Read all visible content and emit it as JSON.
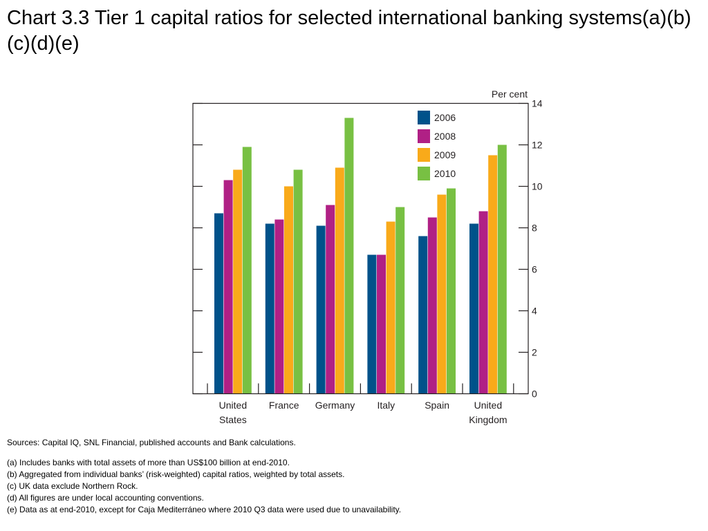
{
  "title": "Chart 3.3  Tier 1 capital ratios for selected international banking systems(a)(b)(c)(d)(e)",
  "chart_data": {
    "type": "bar",
    "categories": [
      [
        "United",
        "States"
      ],
      [
        "France"
      ],
      [
        "Germany"
      ],
      [
        "Italy"
      ],
      [
        "Spain"
      ],
      [
        "United",
        "Kingdom"
      ]
    ],
    "series": [
      {
        "name": "2006",
        "color": "#00528a",
        "values": [
          8.7,
          8.2,
          8.1,
          6.7,
          7.6,
          8.2
        ]
      },
      {
        "name": "2008",
        "color": "#b02085",
        "values": [
          10.3,
          8.4,
          9.1,
          6.7,
          8.5,
          8.8
        ]
      },
      {
        "name": "2009",
        "color": "#f9aa1a",
        "values": [
          10.8,
          10.0,
          10.9,
          8.3,
          9.6,
          11.5
        ]
      },
      {
        "name": "2010",
        "color": "#78c043",
        "values": [
          11.9,
          10.8,
          13.3,
          9.0,
          9.9,
          12.0
        ]
      }
    ],
    "ylabel": "Per cent",
    "ylim": [
      0,
      14
    ],
    "yticks": [
      0,
      2,
      4,
      6,
      8,
      10,
      12,
      14
    ],
    "y_axis_side": "right",
    "legend_position": "top-right",
    "grid": false
  },
  "footnotes": {
    "sources": "Sources:  Capital IQ, SNL Financial, published accounts and Bank calculations.",
    "notes": [
      "(a)  Includes banks with total assets of more than US$100 billion at end-2010.",
      "(b)  Aggregated from individual banks’ (risk-weighted) capital ratios, weighted by total assets.",
      "(c)  UK data exclude Northern Rock.",
      "(d)  All figures are under local accounting conventions.",
      "(e)  Data as at end-2010, except for Caja Mediterráneo where 2010 Q3 data were used due to unavailability."
    ]
  }
}
